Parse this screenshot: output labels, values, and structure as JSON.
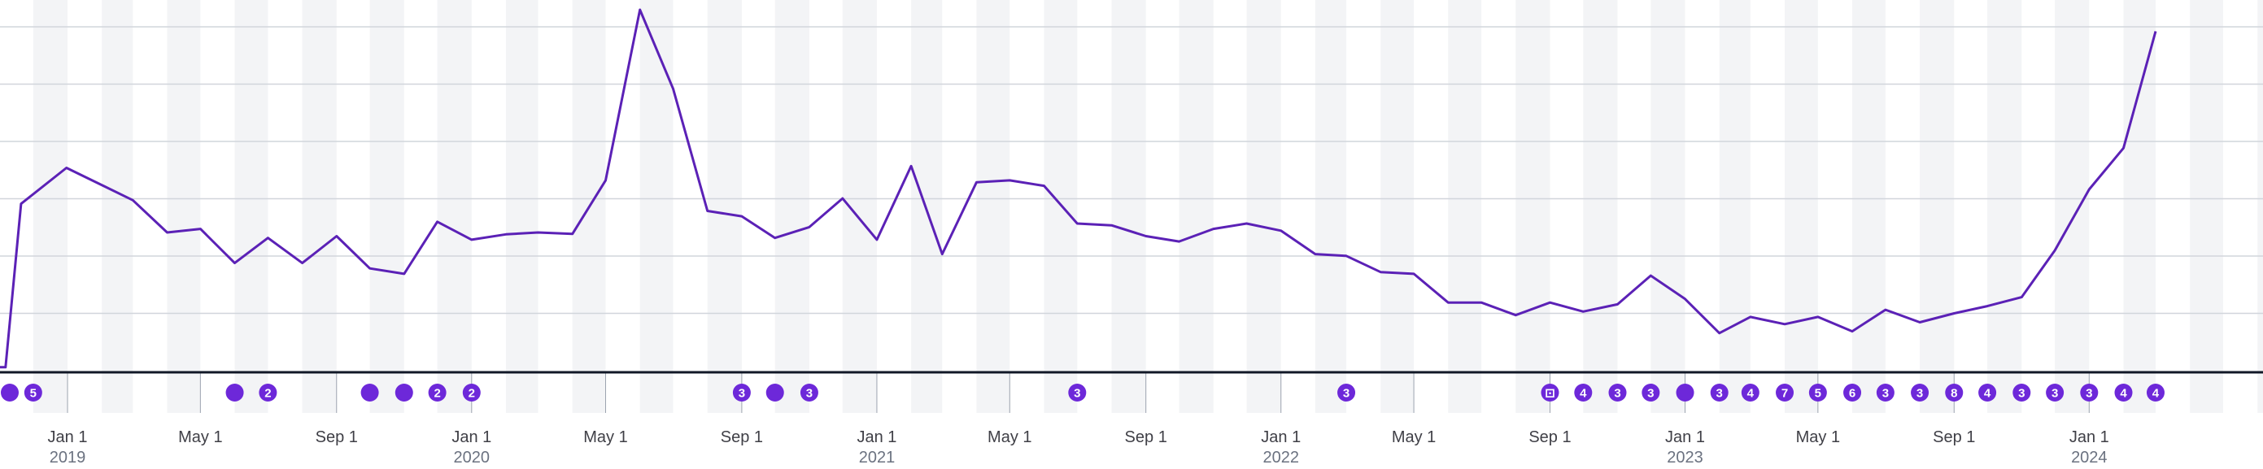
{
  "chart_data": {
    "type": "line",
    "title": "",
    "xlabel": "",
    "ylabel": "",
    "x_axis_type": "date",
    "x_range": [
      "2018-11-01",
      "2024-06-06"
    ],
    "ylim": [
      0,
      100
    ],
    "grid": true,
    "band_shading": "alternate months",
    "series": [
      {
        "color": "#5b21b6",
        "points": [
          [
            "2018-11-01",
            0.5
          ],
          [
            "2018-11-06",
            0.5
          ],
          [
            "2018-11-20",
            46
          ],
          [
            "2018-12-31",
            56
          ],
          [
            "2019-03-01",
            47
          ],
          [
            "2019-04-01",
            38
          ],
          [
            "2019-05-01",
            39
          ],
          [
            "2019-06-01",
            29.5
          ],
          [
            "2019-07-01",
            36.5
          ],
          [
            "2019-08-01",
            29.5
          ],
          [
            "2019-09-01",
            37
          ],
          [
            "2019-10-01",
            28
          ],
          [
            "2019-11-01",
            26.5
          ],
          [
            "2019-12-01",
            41
          ],
          [
            "2020-01-01",
            36
          ],
          [
            "2020-02-01",
            37.5
          ],
          [
            "2020-03-01",
            38
          ],
          [
            "2020-04-01",
            37.6
          ],
          [
            "2020-05-01",
            52.5
          ],
          [
            "2020-06-01",
            100
          ],
          [
            "2020-07-01",
            78
          ],
          [
            "2020-08-01",
            44
          ],
          [
            "2020-09-01",
            42.5
          ],
          [
            "2020-10-01",
            36.5
          ],
          [
            "2020-11-01",
            39.5
          ],
          [
            "2020-12-01",
            47.5
          ],
          [
            "2021-01-01",
            36
          ],
          [
            "2021-02-01",
            56.5
          ],
          [
            "2021-03-01",
            32
          ],
          [
            "2021-04-01",
            52
          ],
          [
            "2021-05-01",
            52.5
          ],
          [
            "2021-06-01",
            51
          ],
          [
            "2021-07-01",
            40.5
          ],
          [
            "2021-08-01",
            40
          ],
          [
            "2021-09-01",
            37
          ],
          [
            "2021-10-01",
            35.5
          ],
          [
            "2021-11-01",
            39
          ],
          [
            "2021-12-01",
            40.5
          ],
          [
            "2022-01-01",
            38.5
          ],
          [
            "2022-02-01",
            32
          ],
          [
            "2022-03-01",
            31.5
          ],
          [
            "2022-04-01",
            27
          ],
          [
            "2022-05-01",
            26.5
          ],
          [
            "2022-06-01",
            18.5
          ],
          [
            "2022-07-01",
            18.5
          ],
          [
            "2022-08-01",
            15
          ],
          [
            "2022-09-01",
            18.5
          ],
          [
            "2022-10-01",
            16
          ],
          [
            "2022-11-01",
            18
          ],
          [
            "2022-12-01",
            26
          ],
          [
            "2023-01-01",
            19.5
          ],
          [
            "2023-02-01",
            10
          ],
          [
            "2023-03-01",
            14.5
          ],
          [
            "2023-04-01",
            12.5
          ],
          [
            "2023-05-01",
            14.5
          ],
          [
            "2023-06-01",
            10.5
          ],
          [
            "2023-07-01",
            16.5
          ],
          [
            "2023-08-01",
            13
          ],
          [
            "2023-09-01",
            15.5
          ],
          [
            "2023-10-01",
            17.5
          ],
          [
            "2023-11-01",
            20
          ],
          [
            "2023-12-01",
            33
          ],
          [
            "2024-01-01",
            50
          ],
          [
            "2024-02-01",
            61.5
          ],
          [
            "2024-03-01",
            94
          ]
        ]
      }
    ],
    "x_tick_labels": [
      {
        "date": "2019-01-01",
        "label": "Jan 1",
        "year": "2019"
      },
      {
        "date": "2019-05-01",
        "label": "May 1"
      },
      {
        "date": "2019-09-01",
        "label": "Sep 1"
      },
      {
        "date": "2020-01-01",
        "label": "Jan 1",
        "year": "2020"
      },
      {
        "date": "2020-05-01",
        "label": "May 1"
      },
      {
        "date": "2020-09-01",
        "label": "Sep 1"
      },
      {
        "date": "2021-01-01",
        "label": "Jan 1",
        "year": "2021"
      },
      {
        "date": "2021-05-01",
        "label": "May 1"
      },
      {
        "date": "2021-09-01",
        "label": "Sep 1"
      },
      {
        "date": "2022-01-01",
        "label": "Jan 1",
        "year": "2022"
      },
      {
        "date": "2022-05-01",
        "label": "May 1"
      },
      {
        "date": "2022-09-01",
        "label": "Sep 1"
      },
      {
        "date": "2023-01-01",
        "label": "Jan 1",
        "year": "2023"
      },
      {
        "date": "2023-05-01",
        "label": "May 1"
      },
      {
        "date": "2023-09-01",
        "label": "Sep 1"
      },
      {
        "date": "2024-01-01",
        "label": "Jan 1",
        "year": "2024"
      }
    ],
    "annotation_markers": [
      {
        "date": "2018-11-05",
        "label": ""
      },
      {
        "date": "2018-12-01",
        "label": "5"
      },
      {
        "date": "2019-06-01",
        "label": ""
      },
      {
        "date": "2019-07-01",
        "label": "2"
      },
      {
        "date": "2019-10-01",
        "label": ""
      },
      {
        "date": "2019-11-01",
        "label": ""
      },
      {
        "date": "2019-12-01",
        "label": "2"
      },
      {
        "date": "2020-01-01",
        "label": "2"
      },
      {
        "date": "2020-09-01",
        "label": "3"
      },
      {
        "date": "2020-10-01",
        "label": ""
      },
      {
        "date": "2020-11-01",
        "label": "3"
      },
      {
        "date": "2021-07-01",
        "label": "3"
      },
      {
        "date": "2022-03-01",
        "label": "3"
      },
      {
        "date": "2022-09-01",
        "label": "⊡"
      },
      {
        "date": "2022-10-01",
        "label": "4"
      },
      {
        "date": "2022-11-01",
        "label": "3"
      },
      {
        "date": "2022-12-01",
        "label": "3"
      },
      {
        "date": "2023-01-01",
        "label": ""
      },
      {
        "date": "2023-02-01",
        "label": "3"
      },
      {
        "date": "2023-03-01",
        "label": "4"
      },
      {
        "date": "2023-04-01",
        "label": "7"
      },
      {
        "date": "2023-05-01",
        "label": "5"
      },
      {
        "date": "2023-06-01",
        "label": "6"
      },
      {
        "date": "2023-07-01",
        "label": "3"
      },
      {
        "date": "2023-08-01",
        "label": "3"
      },
      {
        "date": "2023-09-01",
        "label": "8"
      },
      {
        "date": "2023-10-01",
        "label": "4"
      },
      {
        "date": "2023-11-01",
        "label": "3"
      },
      {
        "date": "2023-12-01",
        "label": "3"
      },
      {
        "date": "2024-01-01",
        "label": "3"
      },
      {
        "date": "2024-02-01",
        "label": "4"
      },
      {
        "date": "2024-03-01",
        "label": "4"
      }
    ]
  },
  "colors": {
    "line": "#5b21b6",
    "marker": "#6d28d9",
    "band": "#f3f4f6",
    "grid": "#d1d5db",
    "axis": "#111827"
  }
}
